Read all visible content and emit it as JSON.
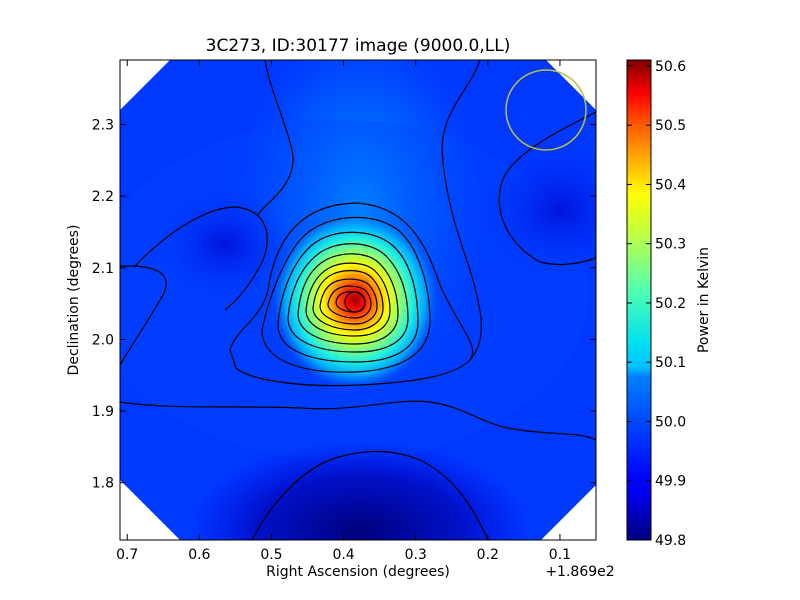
{
  "chart_data": {
    "type": "heatmap",
    "title": "3C273, ID:30177 image (9000.0,LL)",
    "xlabel": "Right Ascension (degrees)",
    "ylabel": "Declination (degrees)",
    "x_offset_label": "+1.869e2",
    "xlim": [
      0.71,
      0.05
    ],
    "ylim": [
      1.72,
      2.39
    ],
    "x_ticks": [
      0.7,
      0.6,
      0.5,
      0.4,
      0.3,
      0.2,
      0.1
    ],
    "x_tick_labels": [
      "0.7",
      "0.6",
      "0.5",
      "0.4",
      "0.3",
      "0.2",
      "0.1"
    ],
    "y_ticks": [
      1.8,
      1.9,
      2.0,
      2.1,
      2.2,
      2.3
    ],
    "y_tick_labels": [
      "1.8",
      "1.9",
      "2.0",
      "2.1",
      "2.2",
      "2.3"
    ],
    "colorbar": {
      "label": "Power in Kelvin",
      "range": [
        49.8,
        50.61
      ],
      "ticks": [
        49.8,
        49.9,
        50.0,
        50.1,
        50.2,
        50.3,
        50.4,
        50.5,
        50.6
      ],
      "tick_labels": [
        "49.8",
        "49.9",
        "50.0",
        "50.1",
        "50.2",
        "50.3",
        "50.4",
        "50.5",
        "50.6"
      ],
      "colormap": "jet"
    },
    "peak": {
      "x": 0.375,
      "y": 2.05,
      "value": 50.61
    },
    "beam_circle": {
      "x": 0.12,
      "y": 2.32,
      "color": "#bfbf40"
    },
    "contours": true,
    "grid": false
  }
}
